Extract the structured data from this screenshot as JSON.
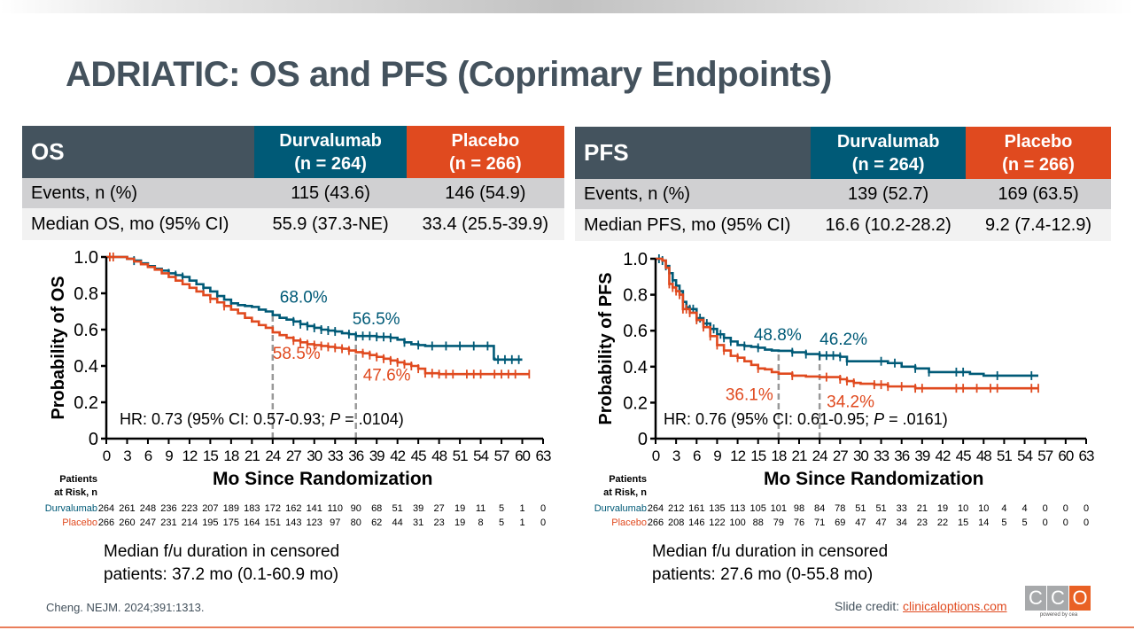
{
  "title": "ADRIATIC: OS and PFS (Coprimary Endpoints)",
  "colors": {
    "durvalumab": "#005a77",
    "placebo": "#e04a1f",
    "header_gray": "#44535e",
    "ref_line": "#999999"
  },
  "os_table": {
    "label": "OS",
    "durva_header": [
      "Durvalumab",
      "(n = 264)"
    ],
    "placebo_header": [
      "Placebo",
      "(n = 266)"
    ],
    "rows": [
      {
        "label": "Events, n (%)",
        "durva": "115 (43.6)",
        "placebo": "146 (54.9)"
      },
      {
        "label": "Median OS, mo (95% CI)",
        "durva": "55.9 (37.3-NE)",
        "placebo": "33.4 (25.5-39.9)"
      }
    ]
  },
  "pfs_table": {
    "label": "PFS",
    "durva_header": [
      "Durvalumab",
      "(n = 264)"
    ],
    "placebo_header": [
      "Placebo",
      "(n = 266)"
    ],
    "rows": [
      {
        "label": "Events, n (%)",
        "durva": "139 (52.7)",
        "placebo": "169 (63.5)"
      },
      {
        "label": "Median PFS, mo (95% CI)",
        "durva": "16.6 (10.2-28.2)",
        "placebo": "9.2 (7.4-12.9)"
      }
    ]
  },
  "risk_header": [
    "Patients",
    "at Risk, n"
  ],
  "xlabel": "Mo Since Randomization",
  "os_followup": [
    "Median f/u duration in censored",
    "patients: 37.2 mo (0.1-60.9 mo)"
  ],
  "pfs_followup": [
    "Median f/u duration in censored",
    "patients: 27.6 mo (0-55.8 mo)"
  ],
  "citation": "Cheng. NEJM. 2024;391:1313.",
  "credit_label": "Slide credit: ",
  "credit_link": "clinicaloptions.com",
  "logo": {
    "letters": [
      "C",
      "C",
      "O"
    ],
    "tagline": "powered by cea"
  },
  "chart_data": [
    {
      "type": "line",
      "title": "Overall Survival",
      "ylabel": "Probability of OS",
      "xlabel": "Mo Since Randomization",
      "xlim": [
        0,
        63
      ],
      "ylim": [
        0,
        1.0
      ],
      "xticks": [
        0,
        3,
        6,
        9,
        12,
        15,
        18,
        21,
        24,
        27,
        30,
        33,
        36,
        39,
        42,
        45,
        48,
        51,
        54,
        57,
        60,
        63
      ],
      "yticks": [
        0,
        0.2,
        0.4,
        0.6,
        0.8,
        1.0
      ],
      "ytick_labels": [
        "0",
        "0.2",
        "0.4",
        "0.6",
        "0.8",
        "1.0"
      ],
      "grid": false,
      "hr_text": "HR: 0.73 (95% CI: 0.57-0.93; ",
      "hr_p": "P",
      "hr_tail": " = .0104)",
      "ref_lines_x": [
        24,
        36
      ],
      "annotations": [
        {
          "text": "68.0%",
          "series": "Durvalumab",
          "x": 24,
          "y": 0.68
        },
        {
          "text": "56.5%",
          "series": "Durvalumab",
          "x": 36,
          "y": 0.565
        },
        {
          "text": "58.5%",
          "series": "Placebo",
          "x": 24,
          "y": 0.585
        },
        {
          "text": "47.6%",
          "series": "Placebo",
          "x": 36,
          "y": 0.476
        }
      ],
      "series": [
        {
          "name": "Durvalumab",
          "x": [
            0,
            2,
            3,
            4,
            5,
            6,
            7,
            8,
            9,
            10,
            11,
            12,
            13,
            14,
            15,
            16,
            17,
            18,
            19,
            20,
            21,
            22,
            23,
            24,
            25,
            26,
            27,
            28,
            29,
            30,
            31,
            32,
            33,
            34,
            35,
            36,
            37,
            38,
            39,
            40,
            41,
            42,
            43,
            44,
            45,
            46,
            48,
            50,
            52,
            54,
            55,
            55.9,
            56,
            58,
            60
          ],
          "y": [
            1.0,
            1.0,
            0.99,
            0.98,
            0.965,
            0.95,
            0.935,
            0.925,
            0.91,
            0.9,
            0.89,
            0.87,
            0.85,
            0.83,
            0.81,
            0.785,
            0.765,
            0.745,
            0.735,
            0.73,
            0.725,
            0.71,
            0.7,
            0.68,
            0.665,
            0.655,
            0.645,
            0.63,
            0.62,
            0.61,
            0.6,
            0.595,
            0.59,
            0.58,
            0.575,
            0.565,
            0.565,
            0.565,
            0.56,
            0.56,
            0.555,
            0.545,
            0.53,
            0.52,
            0.515,
            0.51,
            0.51,
            0.51,
            0.51,
            0.51,
            0.51,
            0.44,
            0.435,
            0.435,
            0.435
          ],
          "censor_x": [
            4,
            9,
            10,
            11,
            14,
            16,
            18,
            27,
            28,
            29,
            30,
            31,
            32,
            33,
            35,
            36,
            37,
            38,
            39,
            40,
            41,
            43,
            45,
            47,
            49,
            51,
            53,
            55,
            56.5,
            57.5,
            58.5,
            59.5
          ]
        },
        {
          "name": "Placebo",
          "x": [
            0,
            2,
            3,
            4,
            5,
            6,
            7,
            8,
            9,
            10,
            11,
            12,
            13,
            14,
            15,
            16,
            17,
            18,
            19,
            20,
            21,
            22,
            23,
            24,
            25,
            26,
            27,
            28,
            29,
            30,
            31,
            32,
            33,
            34,
            35,
            36,
            37,
            38,
            39,
            40,
            41,
            42,
            43,
            44,
            45,
            46,
            48,
            52,
            56,
            60,
            61
          ],
          "y": [
            1.0,
            1.0,
            0.99,
            0.975,
            0.96,
            0.945,
            0.93,
            0.91,
            0.89,
            0.87,
            0.85,
            0.83,
            0.81,
            0.79,
            0.77,
            0.75,
            0.73,
            0.71,
            0.69,
            0.665,
            0.645,
            0.625,
            0.61,
            0.585,
            0.57,
            0.555,
            0.54,
            0.53,
            0.52,
            0.515,
            0.51,
            0.505,
            0.5,
            0.495,
            0.485,
            0.476,
            0.47,
            0.46,
            0.45,
            0.44,
            0.43,
            0.42,
            0.41,
            0.4,
            0.385,
            0.36,
            0.355,
            0.355,
            0.355,
            0.355,
            0.355
          ],
          "censor_x": [
            0.5,
            1,
            15,
            17,
            27,
            28,
            29,
            30,
            31,
            32,
            33,
            34,
            35,
            37,
            38,
            39,
            40,
            41,
            42,
            43,
            44,
            45,
            46,
            47,
            48,
            49,
            50,
            52,
            53,
            54,
            56,
            57,
            58,
            59,
            61
          ]
        }
      ],
      "risk_table": {
        "Durvalumab": [
          264,
          261,
          248,
          236,
          223,
          207,
          189,
          183,
          172,
          162,
          141,
          110,
          90,
          68,
          51,
          39,
          27,
          19,
          11,
          5,
          1,
          0
        ],
        "Placebo": [
          266,
          260,
          247,
          231,
          214,
          195,
          175,
          164,
          151,
          143,
          123,
          97,
          80,
          62,
          44,
          31,
          23,
          19,
          8,
          5,
          1,
          0
        ]
      }
    },
    {
      "type": "line",
      "title": "Progression-Free Survival",
      "ylabel": "Probability of PFS",
      "xlabel": "Mo Since Randomization",
      "xlim": [
        0,
        63
      ],
      "ylim": [
        0,
        1.0
      ],
      "xticks": [
        0,
        3,
        6,
        9,
        12,
        15,
        18,
        21,
        24,
        27,
        30,
        33,
        36,
        39,
        42,
        45,
        48,
        51,
        54,
        57,
        60,
        63
      ],
      "yticks": [
        0,
        0.2,
        0.4,
        0.6,
        0.8,
        1.0
      ],
      "ytick_labels": [
        "0",
        "0.2",
        "0.4",
        "0.6",
        "0.8",
        "1.0"
      ],
      "grid": false,
      "hr_text": "HR: 0.76 (95% CI: 0.61-0.95; ",
      "hr_p": "P",
      "hr_tail": " = .0161)",
      "ref_lines_x": [
        18,
        24
      ],
      "annotations": [
        {
          "text": "48.8%",
          "series": "Durvalumab",
          "x": 18,
          "y": 0.488
        },
        {
          "text": "46.2%",
          "series": "Durvalumab",
          "x": 24,
          "y": 0.462
        },
        {
          "text": "36.1%",
          "series": "Placebo",
          "x": 18,
          "y": 0.361
        },
        {
          "text": "34.2%",
          "series": "Placebo",
          "x": 24,
          "y": 0.342
        }
      ],
      "series": [
        {
          "name": "Durvalumab",
          "x": [
            0,
            1,
            1.5,
            2,
            2.5,
            3,
            3.5,
            4,
            4.5,
            5,
            6,
            7,
            8,
            9,
            10,
            11,
            12,
            13,
            14,
            15,
            16,
            17,
            18,
            20,
            22,
            24,
            26,
            27,
            28,
            30,
            32,
            34,
            36,
            38,
            40,
            42,
            44,
            46,
            48,
            50,
            52,
            54,
            55,
            56
          ],
          "y": [
            1.0,
            0.99,
            0.96,
            0.92,
            0.88,
            0.85,
            0.82,
            0.76,
            0.73,
            0.72,
            0.67,
            0.64,
            0.61,
            0.58,
            0.56,
            0.54,
            0.52,
            0.515,
            0.51,
            0.505,
            0.495,
            0.49,
            0.488,
            0.48,
            0.47,
            0.462,
            0.462,
            0.455,
            0.43,
            0.43,
            0.43,
            0.42,
            0.4,
            0.39,
            0.37,
            0.37,
            0.37,
            0.36,
            0.35,
            0.35,
            0.35,
            0.35,
            0.35,
            0.35
          ],
          "censor_x": [
            0.5,
            1,
            1.5,
            2,
            2.5,
            3,
            3.5,
            4,
            5,
            5.5,
            6,
            6.5,
            7,
            7.5,
            8,
            8.5,
            9,
            9.5,
            10,
            11,
            13,
            15,
            20,
            22,
            24,
            25,
            26,
            27,
            28,
            33,
            35,
            38,
            40,
            44,
            45,
            50,
            55
          ]
        },
        {
          "name": "Placebo",
          "x": [
            0,
            1,
            1.5,
            2,
            2.5,
            3,
            3.5,
            4,
            5,
            6,
            7,
            8,
            9,
            10,
            11,
            12,
            13,
            14,
            15,
            16,
            17,
            18,
            20,
            22,
            24,
            26,
            27,
            28,
            29,
            30,
            32,
            34,
            36,
            38,
            40,
            42,
            44,
            46,
            48,
            50,
            52,
            54,
            56
          ],
          "y": [
            1.0,
            0.99,
            0.95,
            0.86,
            0.84,
            0.82,
            0.8,
            0.72,
            0.7,
            0.66,
            0.62,
            0.57,
            0.52,
            0.49,
            0.46,
            0.45,
            0.43,
            0.41,
            0.39,
            0.385,
            0.37,
            0.361,
            0.35,
            0.345,
            0.342,
            0.342,
            0.33,
            0.32,
            0.31,
            0.305,
            0.3,
            0.29,
            0.29,
            0.28,
            0.28,
            0.28,
            0.28,
            0.28,
            0.28,
            0.28,
            0.28,
            0.28,
            0.28
          ],
          "censor_x": [
            2,
            2.5,
            3,
            3.5,
            4,
            4.5,
            5,
            6,
            7,
            8,
            9,
            10,
            12,
            15,
            20,
            25,
            27,
            28,
            29,
            32,
            33,
            34,
            36,
            38,
            39,
            44,
            45,
            47,
            49,
            50,
            55,
            56
          ]
        }
      ],
      "risk_table": {
        "Durvalumab": [
          264,
          212,
          161,
          135,
          113,
          105,
          101,
          98,
          84,
          78,
          51,
          51,
          33,
          21,
          19,
          10,
          10,
          4,
          4,
          0,
          0,
          0
        ],
        "Placebo": [
          266,
          208,
          146,
          122,
          100,
          88,
          79,
          76,
          71,
          69,
          47,
          47,
          34,
          23,
          22,
          15,
          14,
          5,
          5,
          0,
          0,
          0
        ]
      }
    }
  ]
}
